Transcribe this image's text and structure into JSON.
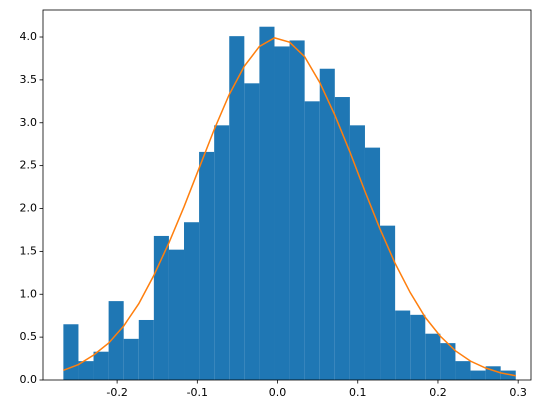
{
  "chart_data": {
    "type": "histogram",
    "bins": [
      -0.267,
      -0.2482,
      -0.2294,
      -0.2106,
      -0.1918,
      -0.173,
      -0.1542,
      -0.1354,
      -0.1166,
      -0.0978,
      -0.079,
      -0.0602,
      -0.0414,
      -0.0226,
      -0.0038,
      0.015,
      0.0338,
      0.0526,
      0.0714,
      0.0902,
      0.109,
      0.1278,
      0.1466,
      0.1654,
      0.1842,
      0.203,
      0.2218,
      0.2406,
      0.2594,
      0.2782,
      0.297
    ],
    "values": [
      0.65,
      0.22,
      0.33,
      0.92,
      0.48,
      0.7,
      1.68,
      1.52,
      1.84,
      2.66,
      2.97,
      4.01,
      3.46,
      4.12,
      3.89,
      3.96,
      3.25,
      3.63,
      3.3,
      2.97,
      2.71,
      1.8,
      0.81,
      0.76,
      0.54,
      0.43,
      0.22,
      0.11,
      0.16,
      0.11
    ],
    "color": "#1f77b4",
    "overlay": {
      "type": "line",
      "color": "#ff7f0e",
      "x": [
        -0.267,
        -0.2482,
        -0.2294,
        -0.2106,
        -0.1918,
        -0.173,
        -0.1542,
        -0.1354,
        -0.1166,
        -0.0978,
        -0.079,
        -0.0602,
        -0.0414,
        -0.0226,
        -0.0038,
        0.015,
        0.0338,
        0.0526,
        0.0714,
        0.0902,
        0.109,
        0.1278,
        0.1466,
        0.1654,
        0.1842,
        0.203,
        0.2218,
        0.2406,
        0.2594,
        0.2782,
        0.297
      ],
      "values": [
        0.113,
        0.18,
        0.29,
        0.43,
        0.63,
        0.89,
        1.22,
        1.6,
        2.02,
        2.47,
        2.92,
        3.33,
        3.66,
        3.89,
        3.99,
        3.94,
        3.77,
        3.47,
        3.09,
        2.66,
        2.2,
        1.76,
        1.36,
        1.02,
        0.73,
        0.51,
        0.34,
        0.22,
        0.14,
        0.083,
        0.049
      ]
    },
    "xlim": [
      -0.2924,
      0.316
    ],
    "ylim": [
      0,
      4.315
    ],
    "xticks": [
      -0.2,
      -0.1,
      {
        "value": 0,
        "label": "0.0"
      },
      0.1,
      0.2,
      0.3
    ],
    "yticks": [
      {
        "value": 0,
        "label": "0.0"
      },
      0.5,
      {
        "value": 1,
        "label": "1.0"
      },
      1.5,
      {
        "value": 2,
        "label": "2.0"
      },
      2.5,
      {
        "value": 3,
        "label": "3.0"
      },
      3.5,
      {
        "value": 4,
        "label": "4.0"
      }
    ]
  }
}
